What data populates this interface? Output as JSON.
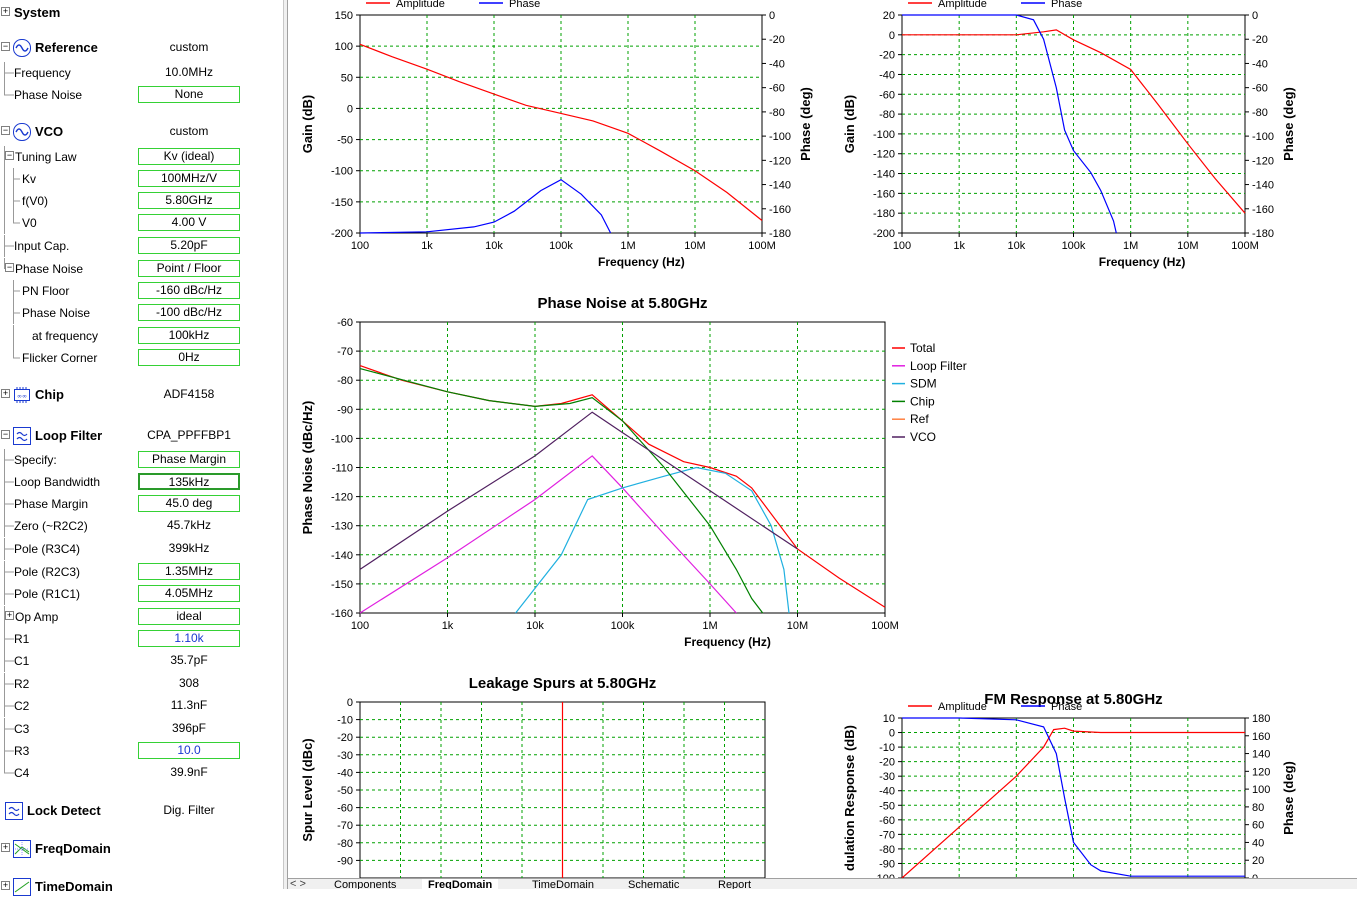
{
  "colors": {
    "box_border": "#35d135",
    "grid": "#00a000",
    "red": "#ff0000",
    "blue": "#0000ff",
    "green": "#008000",
    "magenta": "#e020e0",
    "cyan": "#20b0e0",
    "purple": "#502060",
    "orange": "#ff8040"
  },
  "sidebar": {
    "system": {
      "label": "System"
    },
    "reference": {
      "label": "Reference",
      "value": "custom",
      "rows": [
        {
          "label": "Frequency",
          "value": "10.0MHz"
        },
        {
          "label": "Phase Noise",
          "value": "None"
        }
      ]
    },
    "vco": {
      "label": "VCO",
      "value": "custom",
      "rows": [
        {
          "label": "Tuning Law",
          "value": "Kv (ideal)"
        },
        {
          "label": "Kv",
          "value": "100MHz/V"
        },
        {
          "label": "f(V0)",
          "value": "5.80GHz"
        },
        {
          "label": "V0",
          "value": "4.00 V"
        },
        {
          "label": "Input Cap.",
          "value": "5.20pF"
        },
        {
          "label": "Phase Noise",
          "value": "Point / Floor"
        },
        {
          "label": "PN Floor",
          "value": "-160 dBc/Hz"
        },
        {
          "label": "Phase Noise",
          "value": "-100 dBc/Hz"
        },
        {
          "label": "at frequency",
          "value": "100kHz"
        },
        {
          "label": "Flicker Corner",
          "value": "0Hz"
        }
      ]
    },
    "chip": {
      "label": "Chip",
      "value": "ADF4158"
    },
    "loop_filter": {
      "label": "Loop Filter",
      "value": "CPA_PPFFBP1",
      "rows": [
        {
          "label": "Specify:",
          "value": "Phase Margin"
        },
        {
          "label": "Loop Bandwidth",
          "value": "135kHz"
        },
        {
          "label": "Phase Margin",
          "value": "45.0 deg"
        },
        {
          "label": "Zero (~R2C2)",
          "value": "45.7kHz"
        },
        {
          "label": "Pole (R3C4)",
          "value": "399kHz"
        },
        {
          "label": "Pole (R2C3)",
          "value": "1.35MHz"
        },
        {
          "label": "Pole (R1C1)",
          "value": "4.05MHz"
        },
        {
          "label": "Op Amp",
          "value": "ideal"
        },
        {
          "label": "R1",
          "value": "1.10k"
        },
        {
          "label": "C1",
          "value": "35.7pF"
        },
        {
          "label": "R2",
          "value": "308"
        },
        {
          "label": "C2",
          "value": "11.3nF"
        },
        {
          "label": "C3",
          "value": "396pF"
        },
        {
          "label": "R3",
          "value": "10.0"
        },
        {
          "label": "C4",
          "value": "39.9nF"
        }
      ]
    },
    "lock_detect": {
      "label": "Lock Detect",
      "value": "Dig. Filter"
    },
    "freq_domain": {
      "label": "FreqDomain"
    },
    "time_domain": {
      "label": "TimeDomain"
    }
  },
  "tabs": {
    "nav": "<  >",
    "items": [
      "Components",
      "FreqDomain",
      "TimeDomain",
      "Schematic",
      "Report"
    ],
    "active": "FreqDomain"
  },
  "chart_data": [
    {
      "id": "open_loop",
      "type": "line",
      "title": "",
      "xlabel": "Frequency (Hz)",
      "ylabel": "Gain (dB)",
      "y2label": "Phase (deg)",
      "xscale": "log",
      "xlim": [
        100,
        100000000
      ],
      "ylim": [
        -200,
        150
      ],
      "y2lim": [
        -180,
        0
      ],
      "legend": [
        "Amplitude",
        "Phase"
      ],
      "x_ticks": [
        "100",
        "1k",
        "10k",
        "100k",
        "1M",
        "10M",
        "100M"
      ],
      "y_ticks": [
        "150",
        "100",
        "50",
        "0",
        "-50",
        "-100",
        "-150",
        "-200"
      ],
      "y2_ticks": [
        "0",
        "-20",
        "-40",
        "-60",
        "-80",
        "-100",
        "-120",
        "-140",
        "-160",
        "-180"
      ],
      "series": [
        {
          "name": "Amplitude",
          "axis": "left",
          "color": "#ff0000",
          "x": [
            100,
            300,
            1000,
            3000,
            10000,
            30000,
            100000,
            300000,
            1000000,
            3000000,
            10000000,
            30000000,
            100000000
          ],
          "y": [
            103,
            83,
            63,
            43,
            23,
            5,
            -8,
            -20,
            -40,
            -68,
            -100,
            -135,
            -180
          ]
        },
        {
          "name": "Phase",
          "axis": "right",
          "color": "#0000ff",
          "x": [
            100,
            1000,
            5000,
            10000,
            20000,
            50000,
            100000,
            200000,
            400000,
            550000
          ],
          "y": [
            -180,
            -179,
            -175,
            -171,
            -162,
            -145,
            -136,
            -148,
            -165,
            -180
          ]
        }
      ]
    },
    {
      "id": "closed_loop",
      "type": "line",
      "title": "",
      "xlabel": "Frequency (Hz)",
      "ylabel": "Gain (dB)",
      "y2label": "Phase (deg)",
      "xscale": "log",
      "xlim": [
        100,
        100000000
      ],
      "ylim": [
        -200,
        20
      ],
      "y2lim": [
        -180,
        0
      ],
      "legend": [
        "Amplitude",
        "Phase"
      ],
      "x_ticks": [
        "100",
        "1k",
        "10k",
        "100k",
        "1M",
        "10M",
        "100M"
      ],
      "y_ticks": [
        "20",
        "0",
        "-20",
        "-40",
        "-60",
        "-80",
        "-100",
        "-120",
        "-140",
        "-160",
        "-180",
        "-200"
      ],
      "y2_ticks": [
        "0",
        "-20",
        "-40",
        "-60",
        "-80",
        "-100",
        "-120",
        "-140",
        "-160",
        "-180"
      ],
      "series": [
        {
          "name": "Amplitude",
          "axis": "left",
          "color": "#ff0000",
          "x": [
            100,
            1000,
            10000,
            30000,
            50000,
            100000,
            300000,
            1000000,
            3000000,
            10000000,
            30000000,
            100000000
          ],
          "y": [
            0,
            0,
            0,
            3,
            5,
            -5,
            -18,
            -35,
            -70,
            -110,
            -145,
            -180
          ]
        },
        {
          "name": "Phase",
          "axis": "right",
          "color": "#0000ff",
          "x": [
            100,
            1000,
            10000,
            20000,
            30000,
            50000,
            70000,
            100000,
            200000,
            300000,
            500000,
            560000
          ],
          "y": [
            0,
            0,
            0,
            -4,
            -20,
            -60,
            -95,
            -112,
            -130,
            -145,
            -170,
            -180
          ]
        }
      ]
    },
    {
      "id": "phase_noise",
      "type": "line",
      "title": "Phase Noise at 5.80GHz",
      "xlabel": "Frequency (Hz)",
      "ylabel": "Phase Noise (dBc/Hz)",
      "xscale": "log",
      "xlim": [
        100,
        100000000
      ],
      "ylim": [
        -160,
        -60
      ],
      "legend": [
        "Total",
        "Loop Filter",
        "SDM",
        "Chip",
        "Ref",
        "VCO"
      ],
      "x_ticks": [
        "100",
        "1k",
        "10k",
        "100k",
        "1M",
        "10M",
        "100M"
      ],
      "y_ticks": [
        "-60",
        "-70",
        "-80",
        "-90",
        "-100",
        "-110",
        "-120",
        "-130",
        "-140",
        "-150",
        "-160"
      ],
      "series": [
        {
          "name": "Total",
          "color": "#ff0000",
          "x": [
            100,
            300,
            1000,
            3000,
            10000,
            20000,
            45000,
            100000,
            200000,
            500000,
            1000000,
            2000000,
            3000000,
            10000000,
            30000000,
            100000000
          ],
          "y": [
            -75,
            -80,
            -84,
            -87,
            -89,
            -88,
            -85,
            -94,
            -102,
            -108,
            -110,
            -113,
            -117,
            -138,
            -148,
            -158
          ]
        },
        {
          "name": "Loop Filter",
          "color": "#e020e0",
          "x": [
            100,
            1000,
            10000,
            45000,
            100000,
            300000,
            1000000,
            2000000
          ],
          "y": [
            -160,
            -141,
            -121,
            -106,
            -117,
            -133,
            -150,
            -160
          ]
        },
        {
          "name": "SDM",
          "color": "#20b0e0",
          "x": [
            6000,
            20000,
            40000,
            100000,
            300000,
            700000,
            1500000,
            3000000,
            5000000,
            7000000,
            8000000
          ],
          "y": [
            -160,
            -140,
            -121,
            -117,
            -113,
            -110,
            -112,
            -118,
            -130,
            -145,
            -160
          ]
        },
        {
          "name": "Chip",
          "color": "#008000",
          "x": [
            100,
            1000,
            3000,
            10000,
            25000,
            45000,
            100000,
            300000,
            1000000,
            2000000,
            3000000,
            4000000
          ],
          "y": [
            -76,
            -84,
            -87,
            -89,
            -88,
            -86,
            -94,
            -110,
            -130,
            -145,
            -155,
            -160
          ]
        },
        {
          "name": "VCO",
          "color": "#502060",
          "x": [
            100,
            1000,
            10000,
            45000,
            100000,
            1000000,
            10000000
          ],
          "y": [
            -145,
            -125,
            -106,
            -91,
            -98,
            -118,
            -138
          ]
        }
      ]
    },
    {
      "id": "spurs",
      "type": "bar",
      "title": "Leakage Spurs at 5.80GHz",
      "xlabel": "",
      "ylabel": "Spur Level (dBc)",
      "ylim": [
        -100,
        0
      ],
      "y_ticks": [
        "0",
        "-10",
        "-20",
        "-30",
        "-40",
        "-50",
        "-60",
        "-70",
        "-80",
        "-90"
      ],
      "series": [
        {
          "name": "",
          "color": "#ff0000",
          "x": [
            0
          ],
          "y": [
            0
          ]
        }
      ]
    },
    {
      "id": "fm_response",
      "type": "line",
      "title": "FM Response at 5.80GHz",
      "xlabel": "",
      "ylabel": "dulation Response (dB)",
      "y2label": "Phase (deg)",
      "xscale": "log",
      "xlim": [
        100,
        100000000
      ],
      "ylim": [
        -100,
        10
      ],
      "y2lim": [
        0,
        180
      ],
      "legend": [
        "Amplitude",
        "Phase"
      ],
      "y_ticks": [
        "10",
        "0",
        "-10",
        "-20",
        "-30",
        "-40",
        "-50",
        "-60",
        "-70",
        "-80",
        "-90",
        "-100"
      ],
      "y2_ticks": [
        "180",
        "160",
        "140",
        "120",
        "100",
        "80",
        "60",
        "40",
        "20",
        "0"
      ],
      "series": [
        {
          "name": "Amplitude",
          "axis": "left",
          "color": "#ff0000",
          "x": [
            100,
            1000,
            10000,
            30000,
            45000,
            70000,
            100000,
            300000,
            1000000,
            100000000
          ],
          "y": [
            -100,
            -65,
            -30,
            -10,
            2,
            3,
            1,
            0,
            0,
            0
          ]
        },
        {
          "name": "Phase",
          "axis": "right",
          "color": "#0000ff",
          "x": [
            100,
            1000,
            10000,
            30000,
            50000,
            70000,
            100000,
            200000,
            300000,
            1000000,
            100000000
          ],
          "y": [
            180,
            180,
            178,
            170,
            140,
            90,
            40,
            15,
            8,
            2,
            2
          ]
        }
      ]
    }
  ]
}
